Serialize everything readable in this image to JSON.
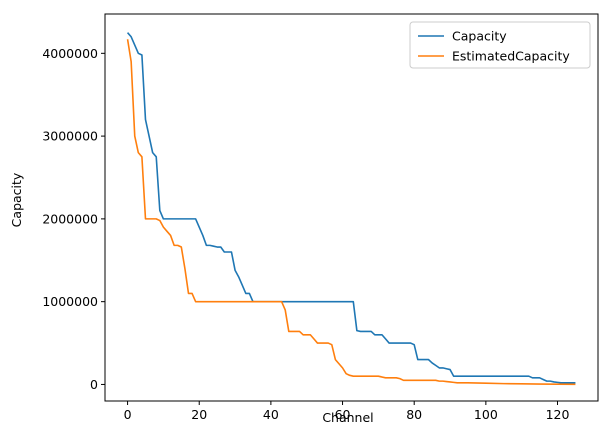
{
  "chart_data": {
    "type": "line",
    "title": "",
    "xlabel": "Channel",
    "ylabel": "Capacity",
    "xlim": [
      -6.3,
      131.3
    ],
    "ylim": [
      -200000,
      4475000
    ],
    "xticks": [
      0,
      20,
      40,
      60,
      80,
      100,
      120
    ],
    "xtick_labels": [
      "0",
      "20",
      "40",
      "60",
      "80",
      "100",
      "120"
    ],
    "yticks": [
      0,
      1000000,
      2000000,
      3000000,
      4000000
    ],
    "ytick_labels": [
      "0",
      "1000000",
      "2000000",
      "3000000",
      "4000000"
    ],
    "grid": false,
    "legend_position": "upper right",
    "series": [
      {
        "name": "Capacity",
        "color": "#1f77b4",
        "points": [
          [
            0,
            4250000
          ],
          [
            1,
            4200000
          ],
          [
            2,
            4100000
          ],
          [
            3,
            4000000
          ],
          [
            4,
            3980000
          ],
          [
            5,
            3200000
          ],
          [
            6,
            3000000
          ],
          [
            7,
            2800000
          ],
          [
            8,
            2750000
          ],
          [
            9,
            2100000
          ],
          [
            10,
            2000000
          ],
          [
            11,
            2000000
          ],
          [
            12,
            2000000
          ],
          [
            13,
            2000000
          ],
          [
            14,
            2000000
          ],
          [
            15,
            2000000
          ],
          [
            16,
            2000000
          ],
          [
            17,
            2000000
          ],
          [
            18,
            2000000
          ],
          [
            19,
            2000000
          ],
          [
            20,
            1900000
          ],
          [
            21,
            1800000
          ],
          [
            22,
            1680000
          ],
          [
            23,
            1680000
          ],
          [
            24,
            1670000
          ],
          [
            25,
            1660000
          ],
          [
            26,
            1660000
          ],
          [
            27,
            1600000
          ],
          [
            28,
            1600000
          ],
          [
            29,
            1600000
          ],
          [
            30,
            1380000
          ],
          [
            31,
            1300000
          ],
          [
            32,
            1200000
          ],
          [
            33,
            1100000
          ],
          [
            34,
            1100000
          ],
          [
            35,
            1000000
          ],
          [
            36,
            1000000
          ],
          [
            40,
            1000000
          ],
          [
            45,
            1000000
          ],
          [
            50,
            1000000
          ],
          [
            55,
            1000000
          ],
          [
            60,
            1000000
          ],
          [
            63,
            1000000
          ],
          [
            64,
            650000
          ],
          [
            65,
            640000
          ],
          [
            66,
            640000
          ],
          [
            67,
            640000
          ],
          [
            68,
            640000
          ],
          [
            69,
            600000
          ],
          [
            70,
            600000
          ],
          [
            71,
            600000
          ],
          [
            72,
            550000
          ],
          [
            73,
            500000
          ],
          [
            74,
            500000
          ],
          [
            75,
            500000
          ],
          [
            76,
            500000
          ],
          [
            77,
            500000
          ],
          [
            78,
            500000
          ],
          [
            79,
            500000
          ],
          [
            80,
            480000
          ],
          [
            81,
            300000
          ],
          [
            82,
            300000
          ],
          [
            83,
            300000
          ],
          [
            84,
            300000
          ],
          [
            85,
            260000
          ],
          [
            86,
            230000
          ],
          [
            87,
            200000
          ],
          [
            88,
            200000
          ],
          [
            89,
            190000
          ],
          [
            90,
            180000
          ],
          [
            91,
            100000
          ],
          [
            95,
            100000
          ],
          [
            100,
            100000
          ],
          [
            105,
            100000
          ],
          [
            110,
            100000
          ],
          [
            112,
            100000
          ],
          [
            113,
            80000
          ],
          [
            115,
            80000
          ],
          [
            116,
            60000
          ],
          [
            117,
            40000
          ],
          [
            118,
            40000
          ],
          [
            119,
            30000
          ],
          [
            120,
            25000
          ],
          [
            121,
            20000
          ],
          [
            125,
            20000
          ]
        ]
      },
      {
        "name": "EstimatedCapacity",
        "color": "#ff7f0e",
        "points": [
          [
            0,
            4170000
          ],
          [
            1,
            3900000
          ],
          [
            2,
            3000000
          ],
          [
            3,
            2800000
          ],
          [
            4,
            2750000
          ],
          [
            5,
            2000000
          ],
          [
            6,
            2000000
          ],
          [
            7,
            2000000
          ],
          [
            8,
            2000000
          ],
          [
            9,
            1980000
          ],
          [
            10,
            1900000
          ],
          [
            11,
            1850000
          ],
          [
            12,
            1800000
          ],
          [
            13,
            1680000
          ],
          [
            14,
            1680000
          ],
          [
            15,
            1660000
          ],
          [
            16,
            1400000
          ],
          [
            17,
            1100000
          ],
          [
            18,
            1100000
          ],
          [
            19,
            1000000
          ],
          [
            20,
            1000000
          ],
          [
            25,
            1000000
          ],
          [
            30,
            1000000
          ],
          [
            35,
            1000000
          ],
          [
            40,
            1000000
          ],
          [
            43,
            1000000
          ],
          [
            44,
            900000
          ],
          [
            45,
            640000
          ],
          [
            46,
            640000
          ],
          [
            47,
            640000
          ],
          [
            48,
            640000
          ],
          [
            49,
            600000
          ],
          [
            50,
            600000
          ],
          [
            51,
            600000
          ],
          [
            52,
            550000
          ],
          [
            53,
            500000
          ],
          [
            54,
            500000
          ],
          [
            55,
            500000
          ],
          [
            56,
            500000
          ],
          [
            57,
            480000
          ],
          [
            58,
            300000
          ],
          [
            59,
            250000
          ],
          [
            60,
            200000
          ],
          [
            61,
            130000
          ],
          [
            62,
            110000
          ],
          [
            63,
            100000
          ],
          [
            64,
            100000
          ],
          [
            65,
            100000
          ],
          [
            70,
            100000
          ],
          [
            72,
            80000
          ],
          [
            75,
            80000
          ],
          [
            76,
            70000
          ],
          [
            77,
            50000
          ],
          [
            80,
            50000
          ],
          [
            85,
            50000
          ],
          [
            86,
            50000
          ],
          [
            87,
            40000
          ],
          [
            88,
            40000
          ],
          [
            89,
            35000
          ],
          [
            90,
            30000
          ],
          [
            91,
            25000
          ],
          [
            92,
            20000
          ],
          [
            95,
            20000
          ],
          [
            100,
            15000
          ],
          [
            105,
            10000
          ],
          [
            110,
            8000
          ],
          [
            115,
            5000
          ],
          [
            120,
            3000
          ],
          [
            125,
            2000
          ]
        ]
      }
    ]
  }
}
